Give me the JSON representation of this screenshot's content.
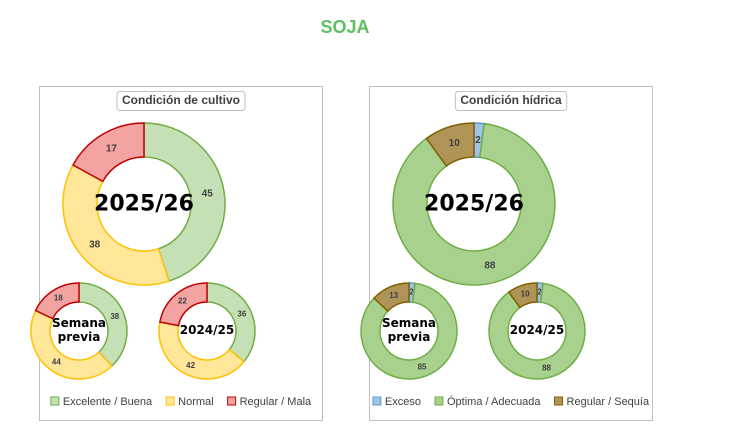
{
  "title": "SOJA",
  "chart_data": [
    {
      "type": "donut",
      "title": "Condición de cultivo",
      "categories": [
        "Excelente / Buena",
        "Normal",
        "Regular / Mala"
      ],
      "colors": [
        "#c5e0b4",
        "#ffe699",
        "#f4a3a3"
      ],
      "stroke_colors": [
        "#70ad47",
        "#ffc000",
        "#c00000"
      ],
      "rings": [
        {
          "label": "2025/26",
          "values": [
            45,
            38,
            17
          ]
        },
        {
          "label": "Semana previa",
          "values": [
            38,
            44,
            18
          ]
        },
        {
          "label": "2024/25",
          "values": [
            36,
            42,
            22
          ]
        }
      ]
    },
    {
      "type": "donut",
      "title": "Condición hídrica",
      "categories": [
        "Exceso",
        "Óptima / Adecuada",
        "Regular / Sequía"
      ],
      "colors": [
        "#9dc3e6",
        "#a9d18e",
        "#b09356"
      ],
      "stroke_colors": [
        "#5b9bd5",
        "#70ad47",
        "#7f6000"
      ],
      "rings": [
        {
          "label": "2025/26",
          "values": [
            2,
            88,
            10
          ]
        },
        {
          "label": "Semana previa",
          "values": [
            2,
            85,
            13
          ]
        },
        {
          "label": "2024/25",
          "values": [
            2,
            88,
            10
          ]
        }
      ]
    }
  ]
}
